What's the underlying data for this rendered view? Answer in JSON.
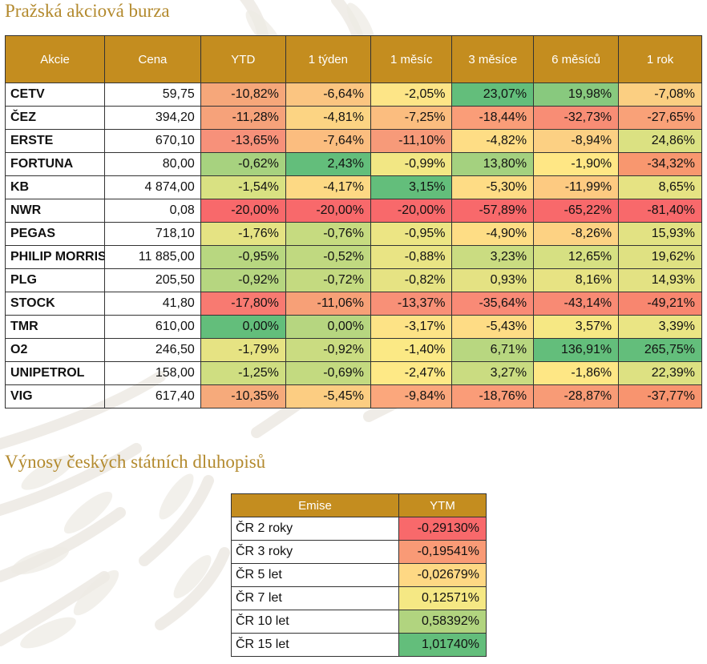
{
  "stocks_section": {
    "title": "Pražská akciová burza",
    "columns": [
      "Akcie",
      "Cena",
      "YTD",
      "1 týden",
      "1 měsíc",
      "3 měsíce",
      "6 měsíců",
      "1 rok"
    ],
    "rows": [
      {
        "name": "CETV",
        "price": "59,75",
        "values": [
          "-10,82%",
          "-6,64%",
          "-2,05%",
          "23,07%",
          "19,98%",
          "-7,08%"
        ],
        "colors": [
          "#f6a77a",
          "#fbc581",
          "#fde587",
          "#63be7b",
          "#88c97e",
          "#fbcf82"
        ]
      },
      {
        "name": "ČEZ",
        "price": "394,20",
        "values": [
          "-11,28%",
          "-4,81%",
          "-7,25%",
          "-18,44%",
          "-32,73%",
          "-27,65%"
        ],
        "colors": [
          "#f6a27a",
          "#fcd483",
          "#fbbd7f",
          "#fa9d78",
          "#f88d75",
          "#f9a178"
        ]
      },
      {
        "name": "ERSTE",
        "price": "670,10",
        "values": [
          "-13,65%",
          "-7,64%",
          "-11,10%",
          "-4,82%",
          "-8,94%",
          "24,86%"
        ],
        "colors": [
          "#f7917a",
          "#fbbd7f",
          "#f79a79",
          "#fedd85",
          "#fcd083",
          "#dbe182"
        ]
      },
      {
        "name": "FORTUNA",
        "price": "80,00",
        "values": [
          "-0,62%",
          "2,43%",
          "-0,99%",
          "13,80%",
          "-1,90%",
          "-34,32%"
        ],
        "colors": [
          "#a7d27f",
          "#63be7b",
          "#f2e784",
          "#a4d17f",
          "#ffe785",
          "#f8976f"
        ]
      },
      {
        "name": "KB",
        "price": "4 874,00",
        "values": [
          "-1,54%",
          "-4,17%",
          "3,15%",
          "-5,30%",
          "-11,99%",
          "8,65%"
        ],
        "colors": [
          "#d9e182",
          "#fdd984",
          "#63be7b",
          "#fedc85",
          "#fdca81",
          "#e6e383"
        ]
      },
      {
        "name": "NWR",
        "price": "0,08",
        "values": [
          "-20,00%",
          "-20,00%",
          "-20,00%",
          "-57,89%",
          "-65,22%",
          "-81,40%"
        ],
        "colors": [
          "#f8696b",
          "#f8696b",
          "#f8696b",
          "#f8696b",
          "#f8696b",
          "#f8696b"
        ]
      },
      {
        "name": "PEGAS",
        "price": "718,10",
        "values": [
          "-1,76%",
          "-0,76%",
          "-0,95%",
          "-4,90%",
          "-8,26%",
          "15,93%"
        ],
        "colors": [
          "#e5e383",
          "#c6db80",
          "#ece584",
          "#fedd85",
          "#fdd283",
          "#e2e283"
        ]
      },
      {
        "name": "PHILIP MORRIS",
        "price": "11 885,00",
        "values": [
          "-0,95%",
          "-0,52%",
          "-0,88%",
          "3,23%",
          "12,65%",
          "19,62%"
        ],
        "colors": [
          "#b8d780",
          "#c0d980",
          "#e9e484",
          "#cadc81",
          "#d6e082",
          "#dfe182"
        ]
      },
      {
        "name": "PLG",
        "price": "205,50",
        "values": [
          "-0,92%",
          "-0,72%",
          "-0,82%",
          "0,93%",
          "8,16%",
          "14,93%"
        ],
        "colors": [
          "#b6d680",
          "#c4da80",
          "#e6e383",
          "#e4e283",
          "#e7e383",
          "#e3e283"
        ]
      },
      {
        "name": "STOCK",
        "price": "41,80",
        "values": [
          "-17,80%",
          "-11,06%",
          "-13,37%",
          "-35,64%",
          "-43,14%",
          "-49,21%"
        ],
        "colors": [
          "#f87a71",
          "#f7a077",
          "#f89077",
          "#f98a76",
          "#f88a74",
          "#f8866f"
        ]
      },
      {
        "name": "TMR",
        "price": "610,00",
        "values": [
          "0,00%",
          "0,00%",
          "-3,17%",
          "-5,43%",
          "3,57%",
          "3,39%"
        ],
        "colors": [
          "#63be7b",
          "#b6d680",
          "#fde386",
          "#fedc85",
          "#f6e884",
          "#eae584"
        ]
      },
      {
        "name": "O2",
        "price": "246,50",
        "values": [
          "-1,79%",
          "-0,92%",
          "-1,40%",
          "6,71%",
          "136,91%",
          "265,75%"
        ],
        "colors": [
          "#e6e383",
          "#cadc81",
          "#fbe985",
          "#b8d780",
          "#63be7b",
          "#63be7b"
        ]
      },
      {
        "name": "UNIPETROL",
        "price": "158,00",
        "values": [
          "-1,25%",
          "-0,69%",
          "-2,47%",
          "3,27%",
          "-1,86%",
          "22,39%"
        ],
        "colors": [
          "#cfde81",
          "#c3da80",
          "#fee986",
          "#cadc81",
          "#fee785",
          "#dde182"
        ]
      },
      {
        "name": "VIG",
        "price": "617,40",
        "values": [
          "-10,35%",
          "-5,45%",
          "-9,84%",
          "-18,76%",
          "-28,87%",
          "-37,77%"
        ],
        "colors": [
          "#f6aa7b",
          "#fccd82",
          "#fba77c",
          "#fa9c78",
          "#f89b76",
          "#f8946f"
        ]
      }
    ]
  },
  "bonds_section": {
    "title": "Výnosy českých státních dluhopisů",
    "columns": [
      "Emise",
      "YTM"
    ],
    "rows": [
      {
        "emise": "ČR 2 roky",
        "ytm": "-0,29130%",
        "color": "#f8696b"
      },
      {
        "emise": "ČR 3 roky",
        "ytm": "-0,19541%",
        "color": "#f99a76"
      },
      {
        "emise": "ČR 5 let",
        "ytm": "-0,02679%",
        "color": "#fed884"
      },
      {
        "emise": "ČR 7 let",
        "ytm": "0,12571%",
        "color": "#f5e884"
      },
      {
        "emise": "ČR 10 let",
        "ytm": "0,58392%",
        "color": "#b1d47f"
      },
      {
        "emise": "ČR 15 let",
        "ytm": "1,01740%",
        "color": "#63be7b"
      }
    ]
  },
  "colors": {
    "header_bg": "#c48d1f",
    "title_text": "#b38a2e"
  }
}
